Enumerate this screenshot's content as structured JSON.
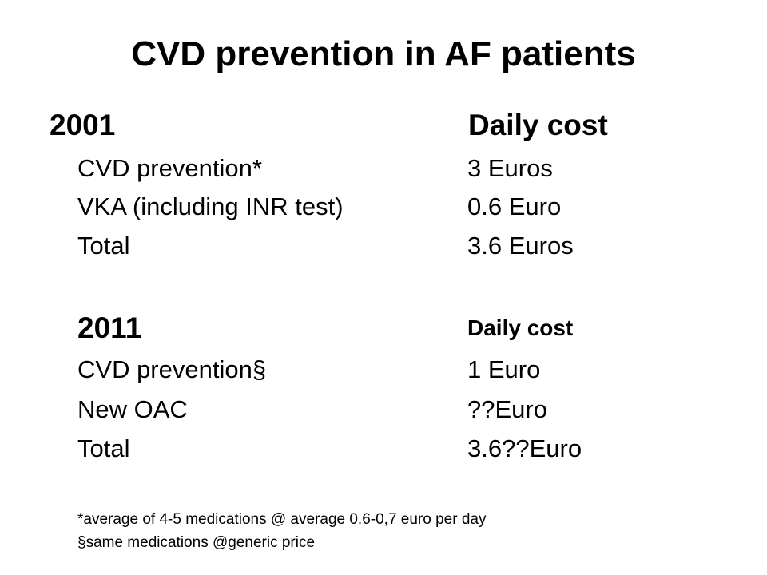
{
  "slide": {
    "title": "CVD prevention in AF patients",
    "section_2001": {
      "year": "2001",
      "cost_header": "Daily cost",
      "rows": [
        {
          "label": "CVD prevention*",
          "value": "3 Euros"
        },
        {
          "label": "VKA (including INR test)",
          "value": "0.6 Euro"
        },
        {
          "label": "Total",
          "value": "3.6 Euros"
        }
      ]
    },
    "section_2011": {
      "year": "2011",
      "cost_header": "Daily cost",
      "rows": [
        {
          "label": "CVD prevention§",
          "value": "1 Euro"
        },
        {
          "label": "New OAC",
          "value": "??Euro"
        },
        {
          "label": "Total",
          "value": "3.6??Euro"
        }
      ]
    },
    "footnotes": [
      "*average of 4-5 medications @ average 0.6-0,7 euro per day",
      "§same medications @generic price"
    ]
  }
}
